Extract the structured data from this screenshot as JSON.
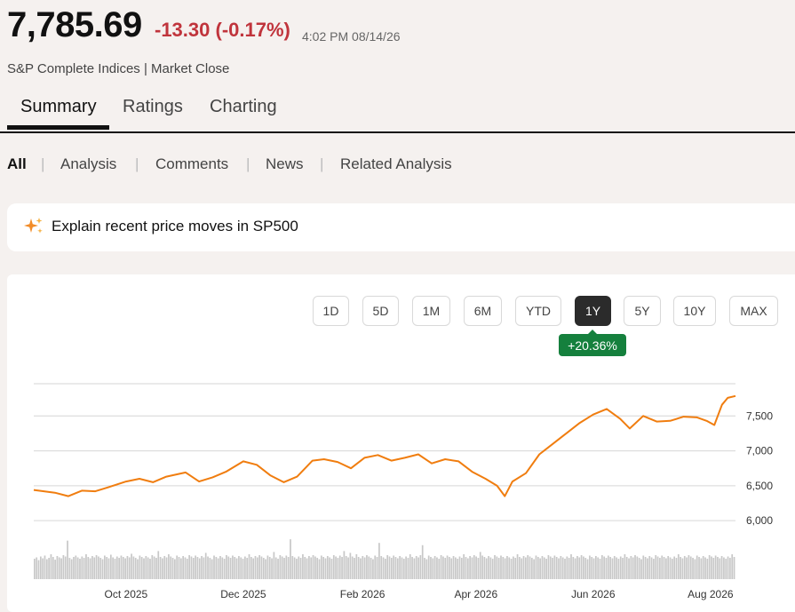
{
  "quote": {
    "price": "7,785.69",
    "change": "-13.30 (-0.17%)",
    "time": "4:02 PM 08/14/26",
    "source": "S&P Complete Indices | Market Close",
    "change_color": "#c0343c"
  },
  "tabs": [
    {
      "label": "Summary",
      "active": true
    },
    {
      "label": "Ratings",
      "active": false
    },
    {
      "label": "Charting",
      "active": false
    }
  ],
  "subnav": [
    {
      "label": "All",
      "active": true
    },
    {
      "label": "Analysis",
      "active": false
    },
    {
      "label": "Comments",
      "active": false
    },
    {
      "label": "News",
      "active": false
    },
    {
      "label": "Related Analysis",
      "active": false
    }
  ],
  "ai_prompt": {
    "icon": "sparkle-icon",
    "label": "Explain recent price moves in SP500"
  },
  "ranges": [
    {
      "label": "1D",
      "active": false
    },
    {
      "label": "5D",
      "active": false
    },
    {
      "label": "1M",
      "active": false
    },
    {
      "label": "6M",
      "active": false
    },
    {
      "label": "YTD",
      "active": false
    },
    {
      "label": "1Y",
      "active": true
    },
    {
      "label": "5Y",
      "active": false
    },
    {
      "label": "10Y",
      "active": false
    },
    {
      "label": "MAX",
      "active": false
    }
  ],
  "performance_badge": "+20.36%",
  "chart_data": {
    "type": "line",
    "line_color": "#f07d0f",
    "volume_color": "#c8c8c8",
    "grid": true,
    "yticks": [
      {
        "value": 6000,
        "label": "6,000"
      },
      {
        "value": 6500,
        "label": "6,500"
      },
      {
        "value": 7000,
        "label": "7,000"
      },
      {
        "value": 7500,
        "label": "7,500"
      }
    ],
    "ylim": [
      5900,
      8000
    ],
    "xticks": [
      {
        "label": "Oct 2025",
        "x": "2025-10-01"
      },
      {
        "label": "Dec 2025",
        "x": "2025-12-01"
      },
      {
        "label": "Feb 2026",
        "x": "2026-02-01"
      },
      {
        "label": "Apr 2026",
        "x": "2026-04-01"
      },
      {
        "label": "Jun 2026",
        "x": "2026-06-01"
      },
      {
        "label": "Aug 2026",
        "x": "2026-08-01"
      }
    ],
    "xlim": [
      "2025-08-14",
      "2026-08-14"
    ],
    "series": [
      {
        "points": [
          [
            "2025-08-14",
            6440
          ],
          [
            "2025-08-25",
            6400
          ],
          [
            "2025-09-01",
            6350
          ],
          [
            "2025-09-08",
            6430
          ],
          [
            "2025-09-15",
            6420
          ],
          [
            "2025-09-22",
            6480
          ],
          [
            "2025-10-01",
            6560
          ],
          [
            "2025-10-08",
            6600
          ],
          [
            "2025-10-15",
            6550
          ],
          [
            "2025-10-22",
            6630
          ],
          [
            "2025-11-01",
            6690
          ],
          [
            "2025-11-08",
            6560
          ],
          [
            "2025-11-15",
            6620
          ],
          [
            "2025-11-22",
            6700
          ],
          [
            "2025-12-01",
            6850
          ],
          [
            "2025-12-08",
            6800
          ],
          [
            "2025-12-15",
            6650
          ],
          [
            "2025-12-22",
            6550
          ],
          [
            "2025-12-29",
            6630
          ],
          [
            "2026-01-06",
            6860
          ],
          [
            "2026-01-12",
            6880
          ],
          [
            "2026-01-19",
            6840
          ],
          [
            "2026-01-26",
            6750
          ],
          [
            "2026-02-02",
            6900
          ],
          [
            "2026-02-09",
            6940
          ],
          [
            "2026-02-16",
            6860
          ],
          [
            "2026-02-23",
            6900
          ],
          [
            "2026-03-02",
            6950
          ],
          [
            "2026-03-09",
            6820
          ],
          [
            "2026-03-16",
            6880
          ],
          [
            "2026-03-23",
            6850
          ],
          [
            "2026-03-30",
            6700
          ],
          [
            "2026-04-06",
            6600
          ],
          [
            "2026-04-12",
            6500
          ],
          [
            "2026-04-16",
            6350
          ],
          [
            "2026-04-20",
            6560
          ],
          [
            "2026-04-27",
            6680
          ],
          [
            "2026-05-04",
            6950
          ],
          [
            "2026-05-11",
            7100
          ],
          [
            "2026-05-18",
            7250
          ],
          [
            "2026-05-25",
            7400
          ],
          [
            "2026-06-01",
            7520
          ],
          [
            "2026-06-08",
            7600
          ],
          [
            "2026-06-15",
            7460
          ],
          [
            "2026-06-20",
            7320
          ],
          [
            "2026-06-27",
            7500
          ],
          [
            "2026-07-04",
            7420
          ],
          [
            "2026-07-11",
            7430
          ],
          [
            "2026-07-18",
            7490
          ],
          [
            "2026-07-25",
            7480
          ],
          [
            "2026-07-30",
            7430
          ],
          [
            "2026-08-03",
            7370
          ],
          [
            "2026-08-07",
            7660
          ],
          [
            "2026-08-10",
            7760
          ],
          [
            "2026-08-14",
            7786
          ]
        ]
      }
    ],
    "volume": [
      0.45,
      0.48,
      0.42,
      0.5,
      0.46,
      0.52,
      0.44,
      0.47,
      0.55,
      0.49,
      0.43,
      0.51,
      0.48,
      0.46,
      0.53,
      0.5,
      0.85,
      0.47,
      0.44,
      0.49,
      0.52,
      0.48,
      0.45,
      0.5,
      0.47,
      0.55,
      0.49,
      0.46,
      0.51,
      0.48,
      0.53,
      0.5,
      0.47,
      0.44,
      0.52,
      0.49,
      0.46,
      0.54,
      0.48,
      0.45,
      0.5,
      0.47,
      0.52,
      0.49,
      0.46,
      0.51,
      0.48,
      0.56,
      0.5,
      0.47,
      0.44,
      0.52,
      0.49,
      0.46,
      0.51,
      0.48,
      0.45,
      0.53,
      0.5,
      0.47,
      0.62,
      0.49,
      0.46,
      0.51,
      0.48,
      0.55,
      0.5,
      0.47,
      0.44,
      0.52,
      0.49,
      0.46,
      0.51,
      0.48,
      0.45,
      0.53,
      0.5,
      0.47,
      0.52,
      0.49,
      0.46,
      0.51,
      0.48,
      0.58,
      0.5,
      0.47,
      0.44,
      0.52,
      0.49,
      0.46,
      0.51,
      0.48,
      0.45,
      0.53,
      0.5,
      0.47,
      0.52,
      0.49,
      0.46,
      0.51,
      0.48,
      0.45,
      0.5,
      0.47,
      0.55,
      0.49,
      0.46,
      0.51,
      0.48,
      0.53,
      0.5,
      0.47,
      0.44,
      0.52,
      0.49,
      0.46,
      0.6,
      0.48,
      0.45,
      0.53,
      0.5,
      0.47,
      0.52,
      0.49,
      0.88,
      0.51,
      0.48,
      0.45,
      0.5,
      0.47,
      0.55,
      0.49,
      0.46,
      0.51,
      0.48,
      0.53,
      0.5,
      0.47,
      0.44,
      0.52,
      0.49,
      0.46,
      0.51,
      0.48,
      0.45,
      0.53,
      0.5,
      0.47,
      0.52,
      0.49,
      0.62,
      0.51,
      0.48,
      0.58,
      0.5,
      0.47,
      0.55,
      0.49,
      0.46,
      0.51,
      0.48,
      0.53,
      0.5,
      0.47,
      0.44,
      0.52,
      0.49,
      0.8,
      0.51,
      0.48,
      0.45,
      0.53,
      0.5,
      0.47,
      0.52,
      0.49,
      0.46,
      0.51,
      0.48,
      0.45,
      0.5,
      0.47,
      0.55,
      0.49,
      0.46,
      0.51,
      0.48,
      0.53,
      0.75,
      0.47,
      0.44,
      0.52,
      0.49,
      0.46,
      0.51,
      0.48,
      0.45,
      0.53,
      0.5,
      0.47,
      0.52,
      0.49,
      0.46,
      0.51,
      0.48,
      0.45,
      0.5,
      0.47,
      0.55,
      0.49,
      0.46,
      0.51,
      0.48,
      0.53,
      0.5,
      0.47,
      0.6,
      0.52,
      0.49,
      0.46,
      0.51,
      0.48,
      0.45,
      0.53,
      0.5,
      0.47,
      0.52,
      0.49,
      0.46,
      0.51,
      0.48,
      0.45,
      0.5,
      0.47,
      0.55,
      0.49,
      0.46,
      0.51,
      0.48,
      0.53,
      0.5,
      0.47,
      0.44,
      0.52,
      0.49,
      0.46,
      0.51,
      0.48,
      0.45,
      0.53,
      0.5,
      0.47,
      0.52,
      0.49,
      0.46,
      0.51,
      0.48,
      0.45,
      0.5,
      0.47,
      0.55,
      0.49,
      0.46,
      0.51,
      0.48,
      0.53,
      0.5,
      0.47,
      0.44,
      0.52,
      0.49,
      0.46,
      0.51,
      0.48,
      0.45,
      0.53,
      0.5,
      0.47,
      0.52,
      0.49,
      0.46,
      0.51,
      0.48,
      0.45,
      0.5,
      0.47,
      0.55,
      0.49,
      0.46,
      0.51,
      0.48,
      0.53,
      0.5,
      0.47,
      0.44,
      0.52,
      0.49,
      0.46,
      0.51,
      0.48,
      0.45,
      0.53,
      0.5,
      0.47,
      0.52,
      0.49,
      0.46,
      0.51,
      0.48,
      0.45,
      0.5,
      0.47,
      0.55,
      0.49,
      0.46,
      0.51,
      0.48,
      0.53,
      0.5,
      0.47,
      0.44,
      0.52,
      0.49,
      0.46,
      0.51,
      0.48,
      0.45,
      0.53,
      0.5,
      0.47,
      0.52,
      0.49,
      0.46,
      0.51,
      0.48,
      0.45,
      0.5,
      0.47,
      0.55,
      0.49
    ]
  }
}
